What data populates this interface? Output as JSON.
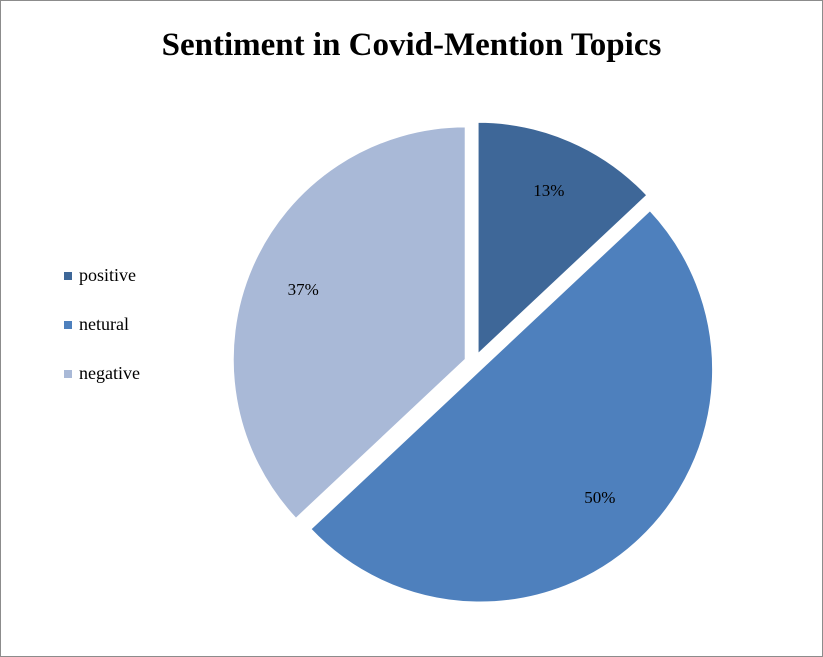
{
  "chart_data": {
    "type": "pie",
    "title": "Sentiment in Covid-Mention Topics",
    "categories": [
      "positive",
      "netural",
      "negative"
    ],
    "values": [
      13,
      50,
      37
    ],
    "labels": [
      "13%",
      "50%",
      "37%"
    ],
    "colors": [
      "#3e6798",
      "#4e80bd",
      "#a9b9d7"
    ],
    "legend_position": "left",
    "exploded": true
  }
}
